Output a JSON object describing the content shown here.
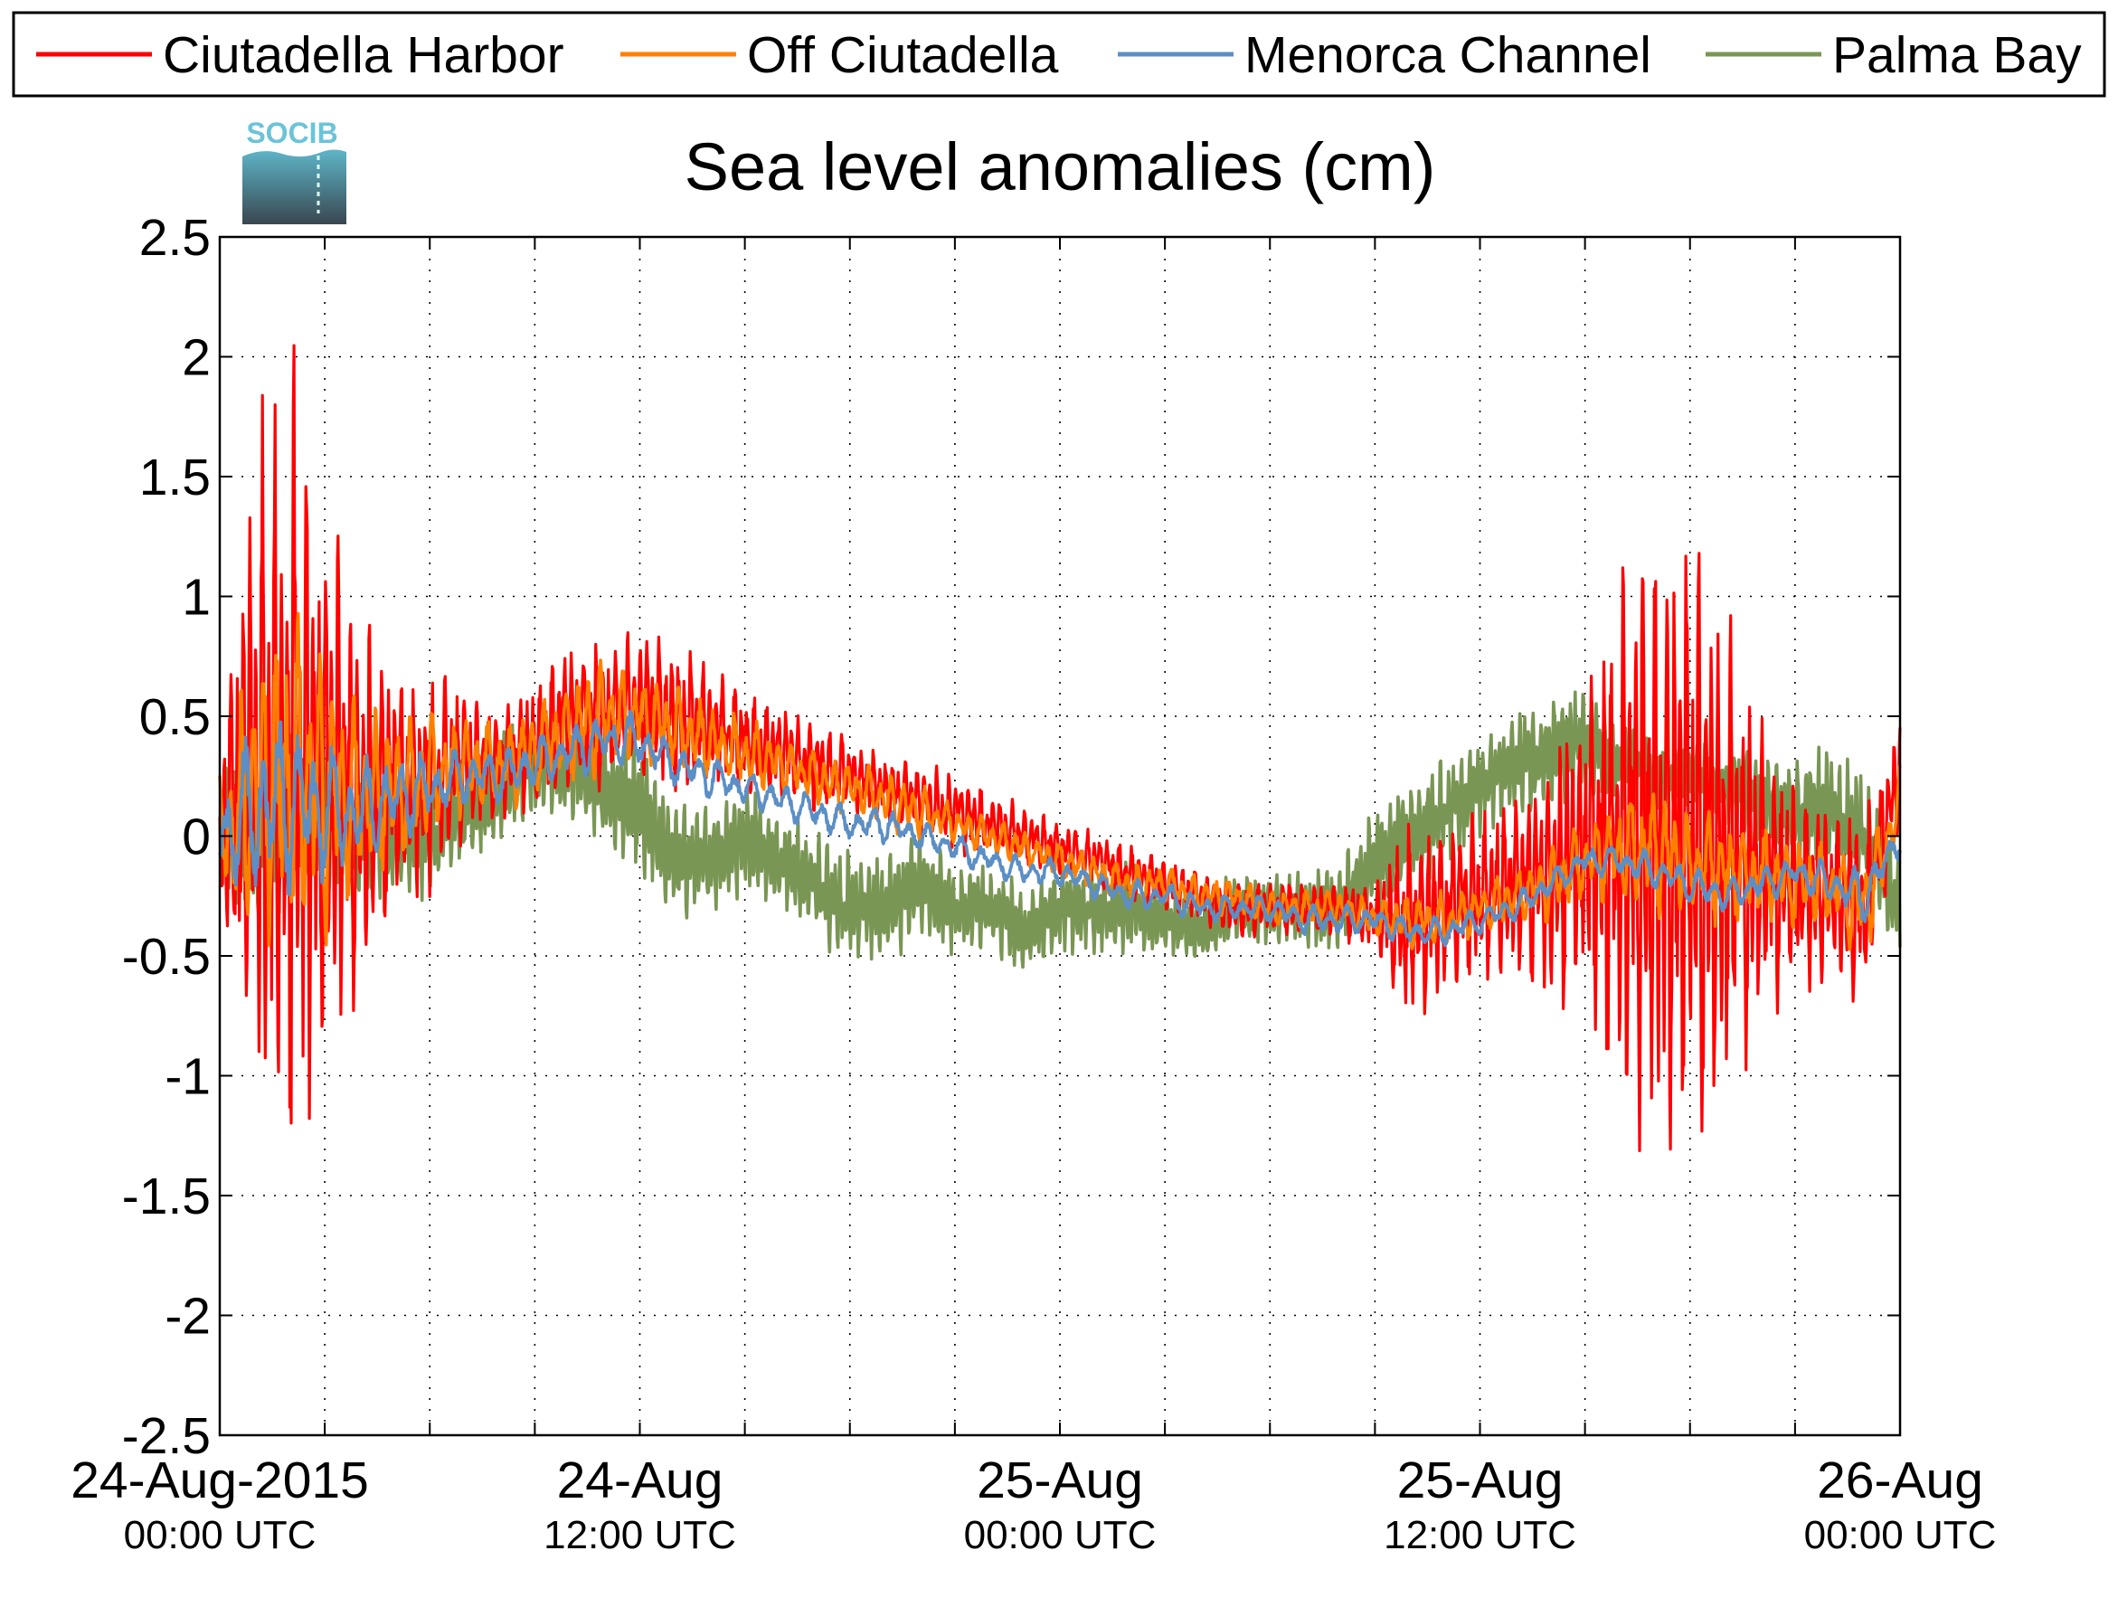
{
  "chart_data": {
    "type": "line",
    "title": "Sea level anomalies (cm)",
    "xlabel": "",
    "ylabel": "",
    "logo_text": "SOCIB",
    "ylim": [
      -2.5,
      2.5
    ],
    "yticks": [
      "2.5",
      "2",
      "1.5",
      "1",
      "0.5",
      "0",
      "-0.5",
      "-1",
      "-1.5",
      "-2",
      "-2.5"
    ],
    "xlim": [
      0,
      48
    ],
    "x_unit": "hours since 24-Aug-2015 00:00 UTC",
    "xticks_major": [
      {
        "x": 0,
        "date": "24-Aug-2015",
        "time": "00:00 UTC"
      },
      {
        "x": 12,
        "date": "24-Aug",
        "time": "12:00 UTC"
      },
      {
        "x": 24,
        "date": "25-Aug",
        "time": "00:00 UTC"
      },
      {
        "x": 36,
        "date": "25-Aug",
        "time": "12:00 UTC"
      },
      {
        "x": 48,
        "date": "26-Aug",
        "time": "00:00 UTC"
      }
    ],
    "grid": true,
    "legend_position": "top",
    "series": [
      {
        "name": "Ciutadella Harbor",
        "color": "#ff0000",
        "x": [
          0,
          1,
          2,
          3,
          4,
          5,
          6,
          7,
          8,
          9,
          10,
          11,
          12,
          13,
          14,
          15,
          16,
          17,
          18,
          19,
          20,
          21,
          22,
          23,
          24,
          25,
          26,
          27,
          28,
          29,
          30,
          31,
          32,
          33,
          34,
          35,
          36,
          37,
          38,
          39,
          40,
          41,
          42,
          43,
          44,
          45,
          46,
          47,
          48
        ],
        "values": [
          0.0,
          0.2,
          0.3,
          0.2,
          0.1,
          0.2,
          0.2,
          0.3,
          0.3,
          0.4,
          0.5,
          0.5,
          0.55,
          0.5,
          0.45,
          0.4,
          0.35,
          0.3,
          0.25,
          0.2,
          0.15,
          0.1,
          0.05,
          0.0,
          -0.05,
          -0.1,
          -0.15,
          -0.2,
          -0.25,
          -0.3,
          -0.3,
          -0.3,
          -0.3,
          -0.35,
          -0.35,
          -0.3,
          -0.25,
          -0.2,
          -0.15,
          -0.05,
          0.0,
          0.0,
          -0.05,
          -0.1,
          -0.15,
          -0.2,
          -0.25,
          -0.3,
          0.3
        ],
        "amplitude": [
          0.6,
          1.8,
          2.3,
          1.6,
          1.0,
          0.7,
          0.6,
          0.4,
          0.35,
          0.35,
          0.4,
          0.4,
          0.4,
          0.4,
          0.35,
          0.3,
          0.25,
          0.25,
          0.2,
          0.2,
          0.2,
          0.2,
          0.2,
          0.15,
          0.15,
          0.15,
          0.15,
          0.15,
          0.15,
          0.15,
          0.15,
          0.15,
          0.15,
          0.2,
          0.6,
          0.45,
          0.45,
          0.5,
          0.7,
          0.9,
          1.5,
          1.9,
          1.7,
          1.4,
          0.8,
          0.6,
          0.5,
          0.5,
          0.3
        ]
      },
      {
        "name": "Off Ciutadella",
        "color": "#ff8000",
        "x": [
          0,
          1,
          2,
          3,
          4,
          5,
          6,
          7,
          8,
          9,
          10,
          11,
          12,
          13,
          14,
          15,
          16,
          17,
          18,
          19,
          20,
          21,
          22,
          23,
          24,
          25,
          26,
          27,
          28,
          29,
          30,
          31,
          32,
          33,
          34,
          35,
          36,
          37,
          38,
          39,
          40,
          41,
          42,
          43,
          44,
          45,
          46,
          47,
          48
        ],
        "values": [
          0.0,
          0.15,
          0.25,
          0.2,
          0.15,
          0.2,
          0.25,
          0.3,
          0.3,
          0.35,
          0.45,
          0.5,
          0.5,
          0.45,
          0.4,
          0.35,
          0.3,
          0.25,
          0.2,
          0.15,
          0.1,
          0.05,
          0.0,
          -0.05,
          -0.1,
          -0.15,
          -0.2,
          -0.2,
          -0.25,
          -0.25,
          -0.3,
          -0.3,
          -0.3,
          -0.35,
          -0.35,
          -0.35,
          -0.3,
          -0.25,
          -0.2,
          -0.1,
          -0.05,
          -0.05,
          -0.1,
          -0.15,
          -0.15,
          -0.2,
          -0.2,
          -0.3,
          0.15
        ],
        "amplitude": [
          0.4,
          0.8,
          1.0,
          0.8,
          0.5,
          0.4,
          0.35,
          0.25,
          0.25,
          0.25,
          0.3,
          0.3,
          0.25,
          0.25,
          0.2,
          0.2,
          0.15,
          0.15,
          0.15,
          0.15,
          0.15,
          0.1,
          0.1,
          0.1,
          0.1,
          0.1,
          0.1,
          0.1,
          0.1,
          0.1,
          0.1,
          0.1,
          0.1,
          0.1,
          0.15,
          0.15,
          0.15,
          0.15,
          0.2,
          0.2,
          0.3,
          0.35,
          0.3,
          0.3,
          0.25,
          0.25,
          0.25,
          0.3,
          0.2
        ]
      },
      {
        "name": "Menorca Channel",
        "color": "#5b8fc5",
        "x": [
          0,
          1,
          2,
          3,
          4,
          5,
          6,
          7,
          8,
          9,
          10,
          11,
          12,
          13,
          14,
          15,
          16,
          17,
          18,
          19,
          20,
          21,
          22,
          23,
          24,
          25,
          26,
          27,
          28,
          29,
          30,
          31,
          32,
          33,
          34,
          35,
          36,
          37,
          38,
          39,
          40,
          41,
          42,
          43,
          44,
          45,
          46,
          47,
          48
        ],
        "values": [
          0.0,
          0.1,
          0.15,
          0.1,
          0.1,
          0.15,
          0.2,
          0.25,
          0.25,
          0.3,
          0.35,
          0.4,
          0.4,
          0.3,
          0.25,
          0.2,
          0.15,
          0.1,
          0.05,
          0.05,
          0.0,
          -0.05,
          -0.1,
          -0.15,
          -0.15,
          -0.2,
          -0.25,
          -0.25,
          -0.3,
          -0.3,
          -0.3,
          -0.35,
          -0.35,
          -0.35,
          -0.4,
          -0.4,
          -0.35,
          -0.3,
          -0.2,
          -0.1,
          -0.1,
          -0.15,
          -0.2,
          -0.25,
          -0.2,
          -0.15,
          -0.2,
          -0.25,
          0.0
        ],
        "amplitude": [
          0.3,
          0.5,
          0.5,
          0.4,
          0.3,
          0.25,
          0.2,
          0.15,
          0.15,
          0.15,
          0.15,
          0.15,
          0.15,
          0.12,
          0.12,
          0.1,
          0.1,
          0.1,
          0.1,
          0.1,
          0.08,
          0.08,
          0.08,
          0.08,
          0.08,
          0.08,
          0.08,
          0.08,
          0.08,
          0.08,
          0.08,
          0.08,
          0.08,
          0.08,
          0.08,
          0.08,
          0.08,
          0.08,
          0.08,
          0.08,
          0.1,
          0.1,
          0.1,
          0.1,
          0.1,
          0.1,
          0.12,
          0.15,
          0.1
        ]
      },
      {
        "name": "Palma Bay",
        "color": "#7a9654",
        "x": [
          0,
          1,
          2,
          3,
          4,
          5,
          6,
          7,
          8,
          9,
          10,
          11,
          12,
          13,
          14,
          15,
          16,
          17,
          18,
          19,
          20,
          21,
          22,
          23,
          24,
          25,
          26,
          27,
          28,
          29,
          30,
          31,
          32,
          33,
          34,
          35,
          36,
          37,
          38,
          39,
          40,
          41,
          42,
          43,
          44,
          45,
          46,
          47,
          48
        ],
        "values": [
          0.0,
          0.0,
          0.1,
          0.1,
          0.0,
          0.0,
          0.0,
          0.1,
          0.2,
          0.3,
          0.3,
          0.2,
          0.1,
          -0.1,
          -0.1,
          0.0,
          -0.1,
          -0.2,
          -0.3,
          -0.3,
          -0.2,
          -0.3,
          -0.3,
          -0.4,
          -0.3,
          -0.3,
          -0.3,
          -0.35,
          -0.4,
          -0.3,
          -0.3,
          -0.3,
          -0.3,
          -0.1,
          0.0,
          0.1,
          0.2,
          0.3,
          0.35,
          0.4,
          0.3,
          0.25,
          0.25,
          0.2,
          0.15,
          0.1,
          0.1,
          0.0,
          -0.3
        ],
        "amplitude": [
          0.4,
          0.5,
          0.5,
          0.45,
          0.4,
          0.35,
          0.35,
          0.3,
          0.3,
          0.3,
          0.3,
          0.3,
          0.35,
          0.35,
          0.3,
          0.3,
          0.3,
          0.3,
          0.3,
          0.3,
          0.3,
          0.25,
          0.25,
          0.25,
          0.25,
          0.25,
          0.25,
          0.2,
          0.2,
          0.2,
          0.2,
          0.2,
          0.25,
          0.3,
          0.3,
          0.3,
          0.3,
          0.3,
          0.3,
          0.3,
          0.25,
          0.2,
          0.2,
          0.2,
          0.25,
          0.3,
          0.35,
          0.35,
          0.3
        ]
      }
    ]
  }
}
